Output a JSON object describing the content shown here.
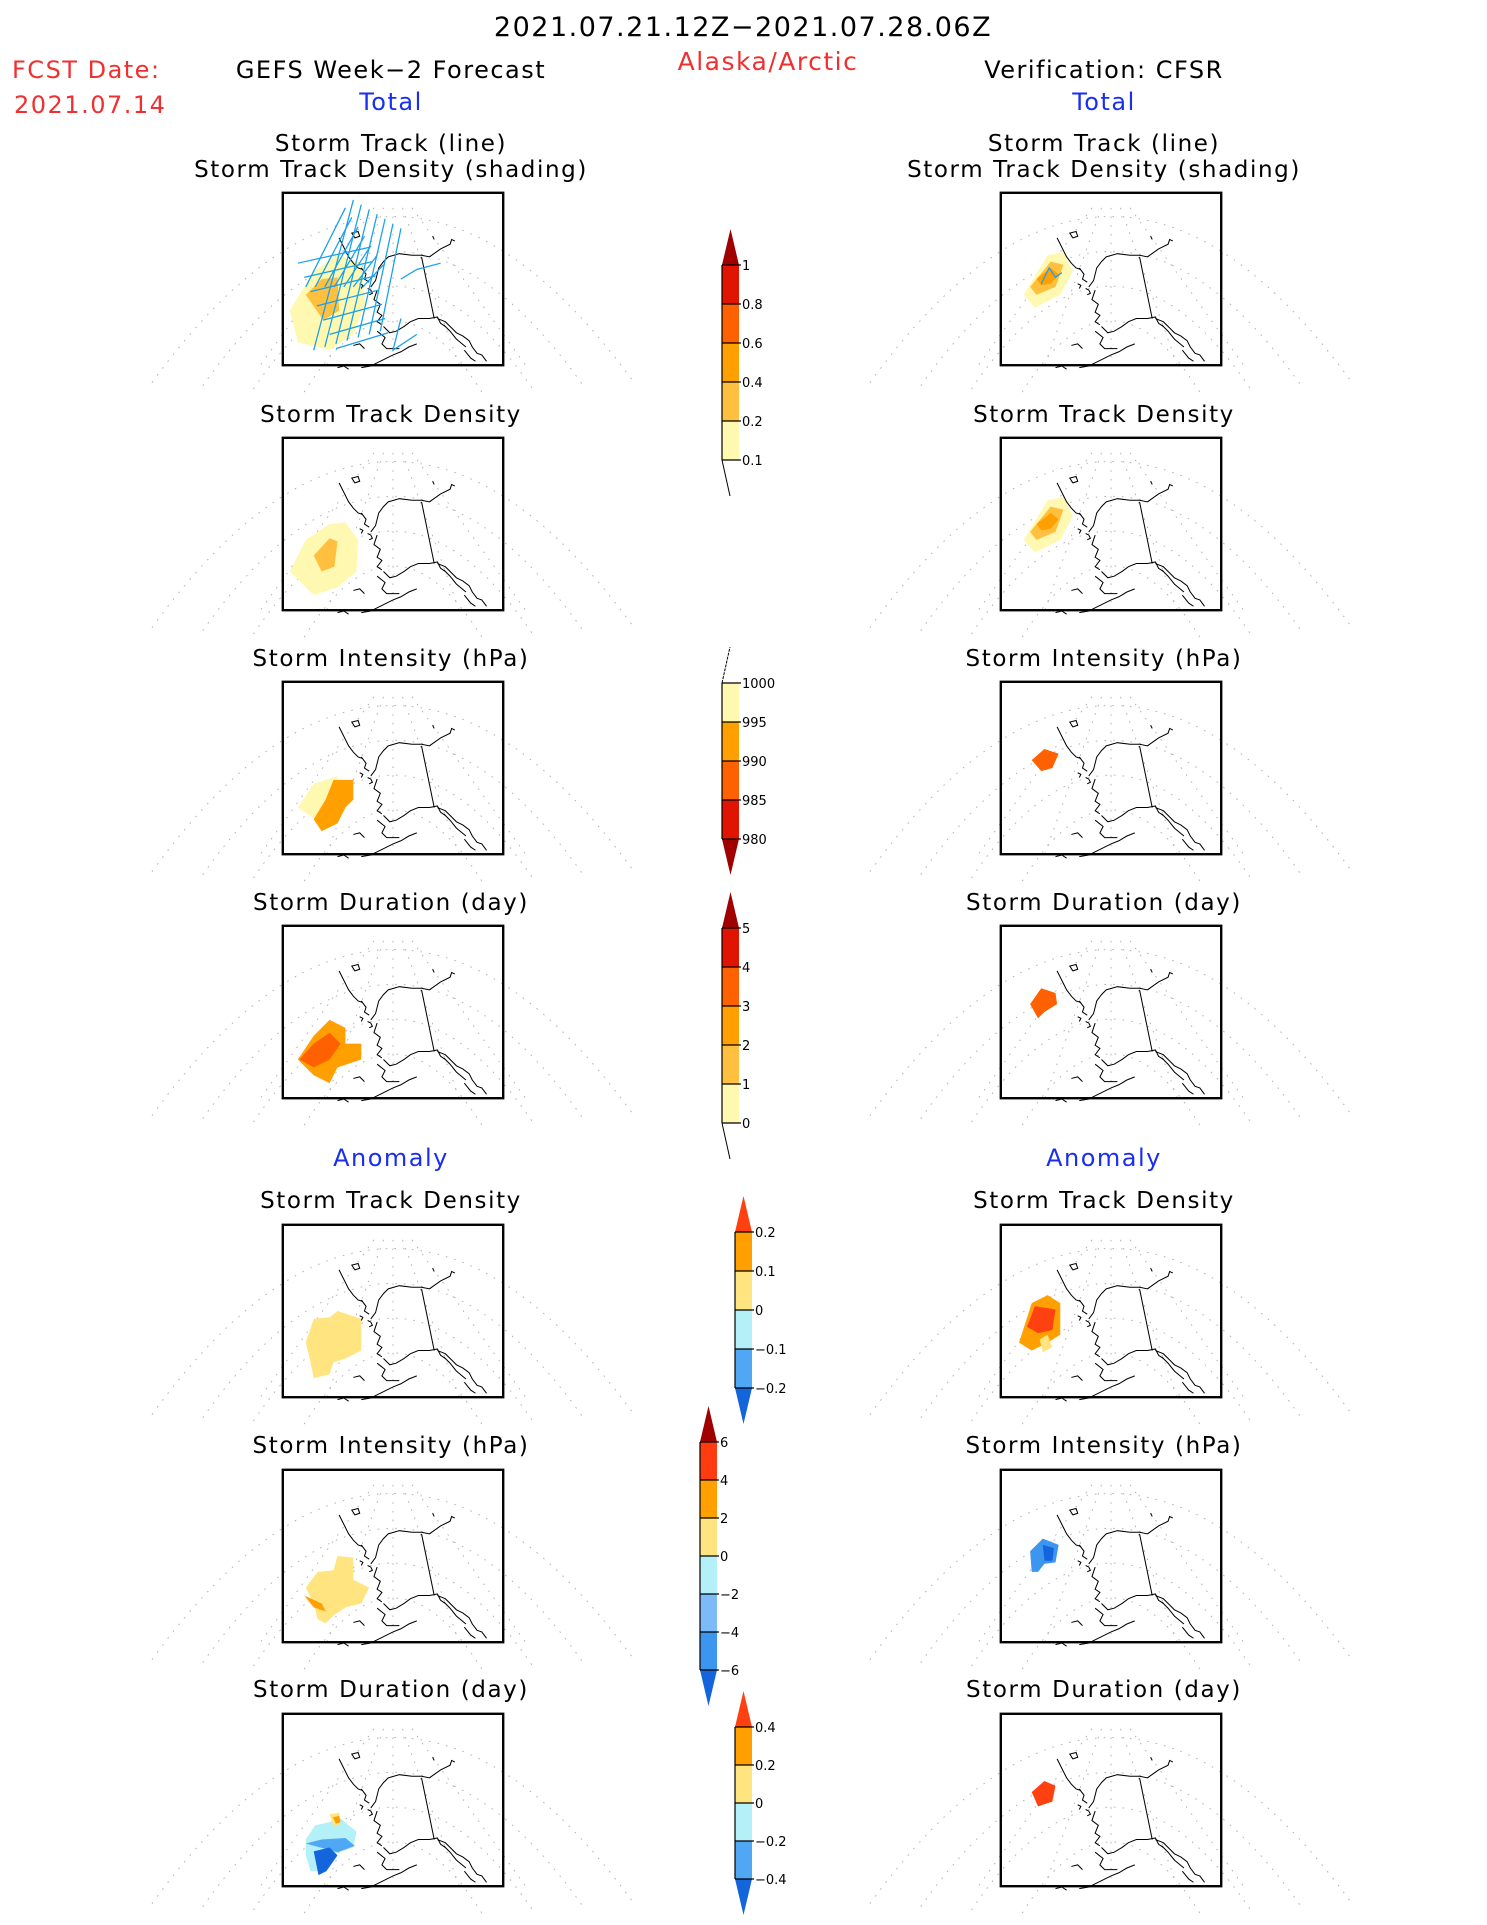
{
  "header": {
    "period": "2021.07.21.12Z−2021.07.28.06Z",
    "region": "Alaska/Arctic",
    "fcst_label": "FCST Date:",
    "fcst_date": "2021.07.14",
    "left_title": "GEFS Week−2 Forecast",
    "right_title": "Verification: CFSR",
    "total_label": "Total",
    "anomaly_label": "Anomaly"
  },
  "colors": {
    "title_red": "#f03030",
    "section_blue": "#1a2ef0",
    "track_line": "#1aa0e8"
  },
  "panel_titles": {
    "track_line": "Storm Track (line)",
    "track_shading": "Storm Track Density (shading)",
    "density": "Storm Track Density",
    "intensity": "Storm Intensity (hPa)",
    "duration": "Storm Duration (day)"
  },
  "chart_data": [
    {
      "type": "heatmap",
      "title": "Storm Track (line) / Storm Track Density (shading)",
      "section": "Total",
      "columns": [
        "GEFS Week-2 Forecast",
        "Verification: CFSR"
      ],
      "colorbar": "density"
    },
    {
      "type": "heatmap",
      "title": "Storm Track Density",
      "section": "Total",
      "colorbar": "density"
    },
    {
      "type": "heatmap",
      "title": "Storm Intensity (hPa)",
      "section": "Total",
      "colorbar": "intensity"
    },
    {
      "type": "heatmap",
      "title": "Storm Duration (day)",
      "section": "Total",
      "colorbar": "duration"
    },
    {
      "type": "heatmap",
      "title": "Storm Track Density",
      "section": "Anomaly",
      "colorbar": "density_anom"
    },
    {
      "type": "heatmap",
      "title": "Storm Intensity (hPa)",
      "section": "Anomaly",
      "colorbar": "intensity_anom"
    },
    {
      "type": "heatmap",
      "title": "Storm Duration (day)",
      "section": "Anomaly",
      "colorbar": "duration_anom"
    }
  ],
  "colorbars": {
    "density": {
      "labels": [
        "1",
        "0.8",
        "0.6",
        "0.4",
        "0.2",
        "0.1"
      ],
      "colors": [
        "#e01400",
        "#ff6000",
        "#ffa000",
        "#ffc040",
        "#fff8b0"
      ],
      "top_arrow": "#a00000",
      "bottom_arrow": null
    },
    "intensity": {
      "labels": [
        "1000",
        "995",
        "990",
        "985",
        "980"
      ],
      "colors": [
        "#fff8b0",
        "#ffa000",
        "#ff6000",
        "#e01400"
      ],
      "top_arrow": null,
      "bottom_arrow": "#a00000"
    },
    "duration": {
      "labels": [
        "5",
        "4",
        "3",
        "2",
        "1",
        "0"
      ],
      "colors": [
        "#e01400",
        "#ff6000",
        "#ffa000",
        "#ffc040",
        "#fff8b0"
      ],
      "top_arrow": "#a00000",
      "bottom_arrow": null
    },
    "density_anom": {
      "labels": [
        "0.2",
        "0.1",
        "0",
        "−0.1",
        "−0.2"
      ],
      "colors": [
        "#ffa000",
        "#ffe480",
        "#b4f0f8",
        "#50a8f4"
      ],
      "top_arrow": "#ff4010",
      "bottom_arrow": "#1464dc"
    },
    "intensity_anom": {
      "labels": [
        "6",
        "4",
        "2",
        "0",
        "−2",
        "−4",
        "−6"
      ],
      "colors": [
        "#ff3c10",
        "#ffa000",
        "#ffe480",
        "#b4f0f8",
        "#7cbaf8",
        "#3c96f0"
      ],
      "top_arrow": "#a00000",
      "bottom_arrow": "#1464dc"
    },
    "duration_anom": {
      "labels": [
        "0.4",
        "0.2",
        "0",
        "−0.2",
        "−0.4"
      ],
      "colors": [
        "#ffa000",
        "#ffe480",
        "#b4f0f8",
        "#50a8f4"
      ],
      "top_arrow": "#ff4010",
      "bottom_arrow": "#1464dc"
    }
  }
}
